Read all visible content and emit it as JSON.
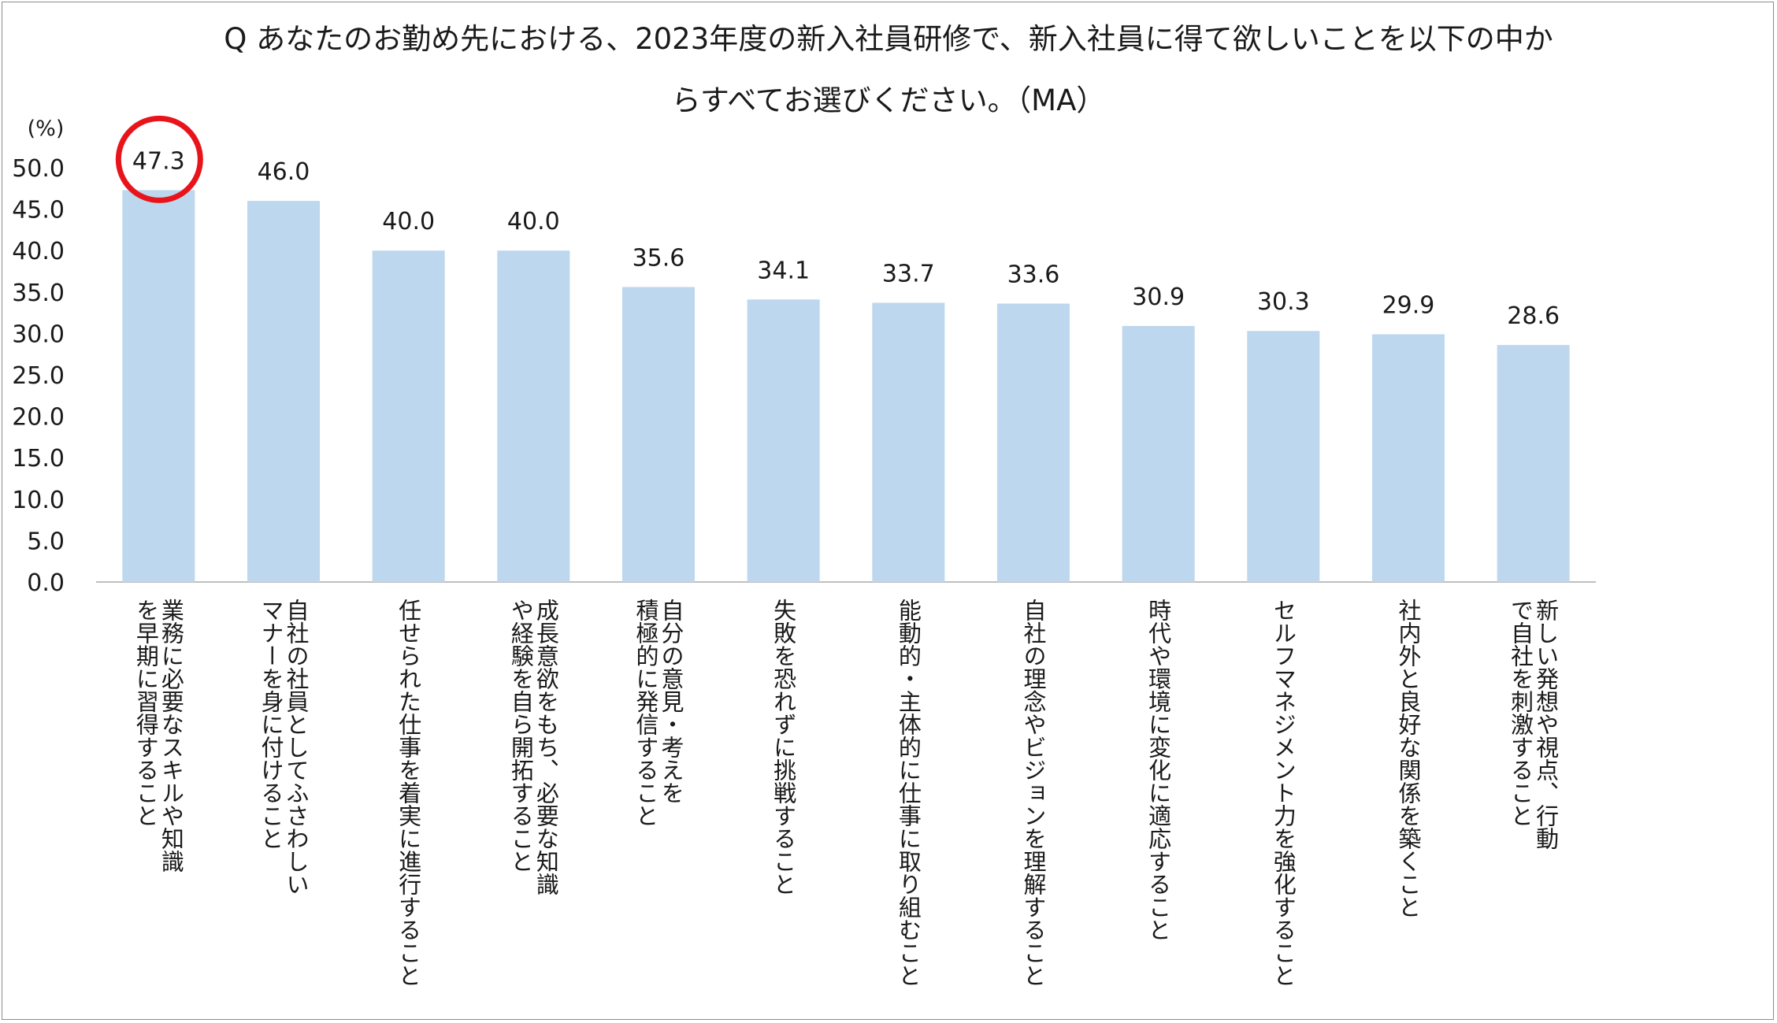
{
  "chart_data": {
    "type": "bar",
    "title_lines": [
      "Q あなたのお勤め先における、2023年度の新入社員研修で、新入社員に得て欲しいことを以下の中か",
      "らすべてお選びください。（MA）"
    ],
    "ylabel": "(%)",
    "ylim": [
      0,
      50
    ],
    "yticks": [
      "0.0",
      "5.0",
      "10.0",
      "15.0",
      "20.0",
      "25.0",
      "30.0",
      "35.0",
      "40.0",
      "45.0",
      "50.0"
    ],
    "categories": [
      [
        "業務に必要なスキルや知識",
        "を早期に習得すること"
      ],
      [
        "自社の社員としてふさわしい",
        "マナーを身に付けること"
      ],
      [
        "任せられた仕事を着実に進行すること"
      ],
      [
        "成長意欲をもち、必要な知識",
        "や経験を自ら開拓すること"
      ],
      [
        "自分の意見・考えを",
        "積極的に発信すること"
      ],
      [
        "失敗を恐れずに挑戦すること"
      ],
      [
        "能動的・主体的に仕事に取り組むこと"
      ],
      [
        "自社の理念やビジョンを理解すること"
      ],
      [
        "時代や環境に変化に適応すること"
      ],
      [
        "セルフマネジメント力を強化すること"
      ],
      [
        "社内外と良好な関係を築くこと"
      ],
      [
        "新しい発想や視点、行動",
        "で自社を刺激すること"
      ]
    ],
    "values": [
      47.3,
      46.0,
      40.0,
      40.0,
      35.6,
      34.1,
      33.7,
      33.6,
      30.9,
      30.3,
      29.9,
      28.6
    ],
    "value_labels": [
      "47.3",
      "46.0",
      "40.0",
      "40.0",
      "35.6",
      "34.1",
      "33.7",
      "33.6",
      "30.9",
      "30.3",
      "29.9",
      "28.6"
    ],
    "highlighted_index": 0,
    "bar_color": "#bdd7ee",
    "highlight_color": "#e8141b",
    "grid": false
  }
}
